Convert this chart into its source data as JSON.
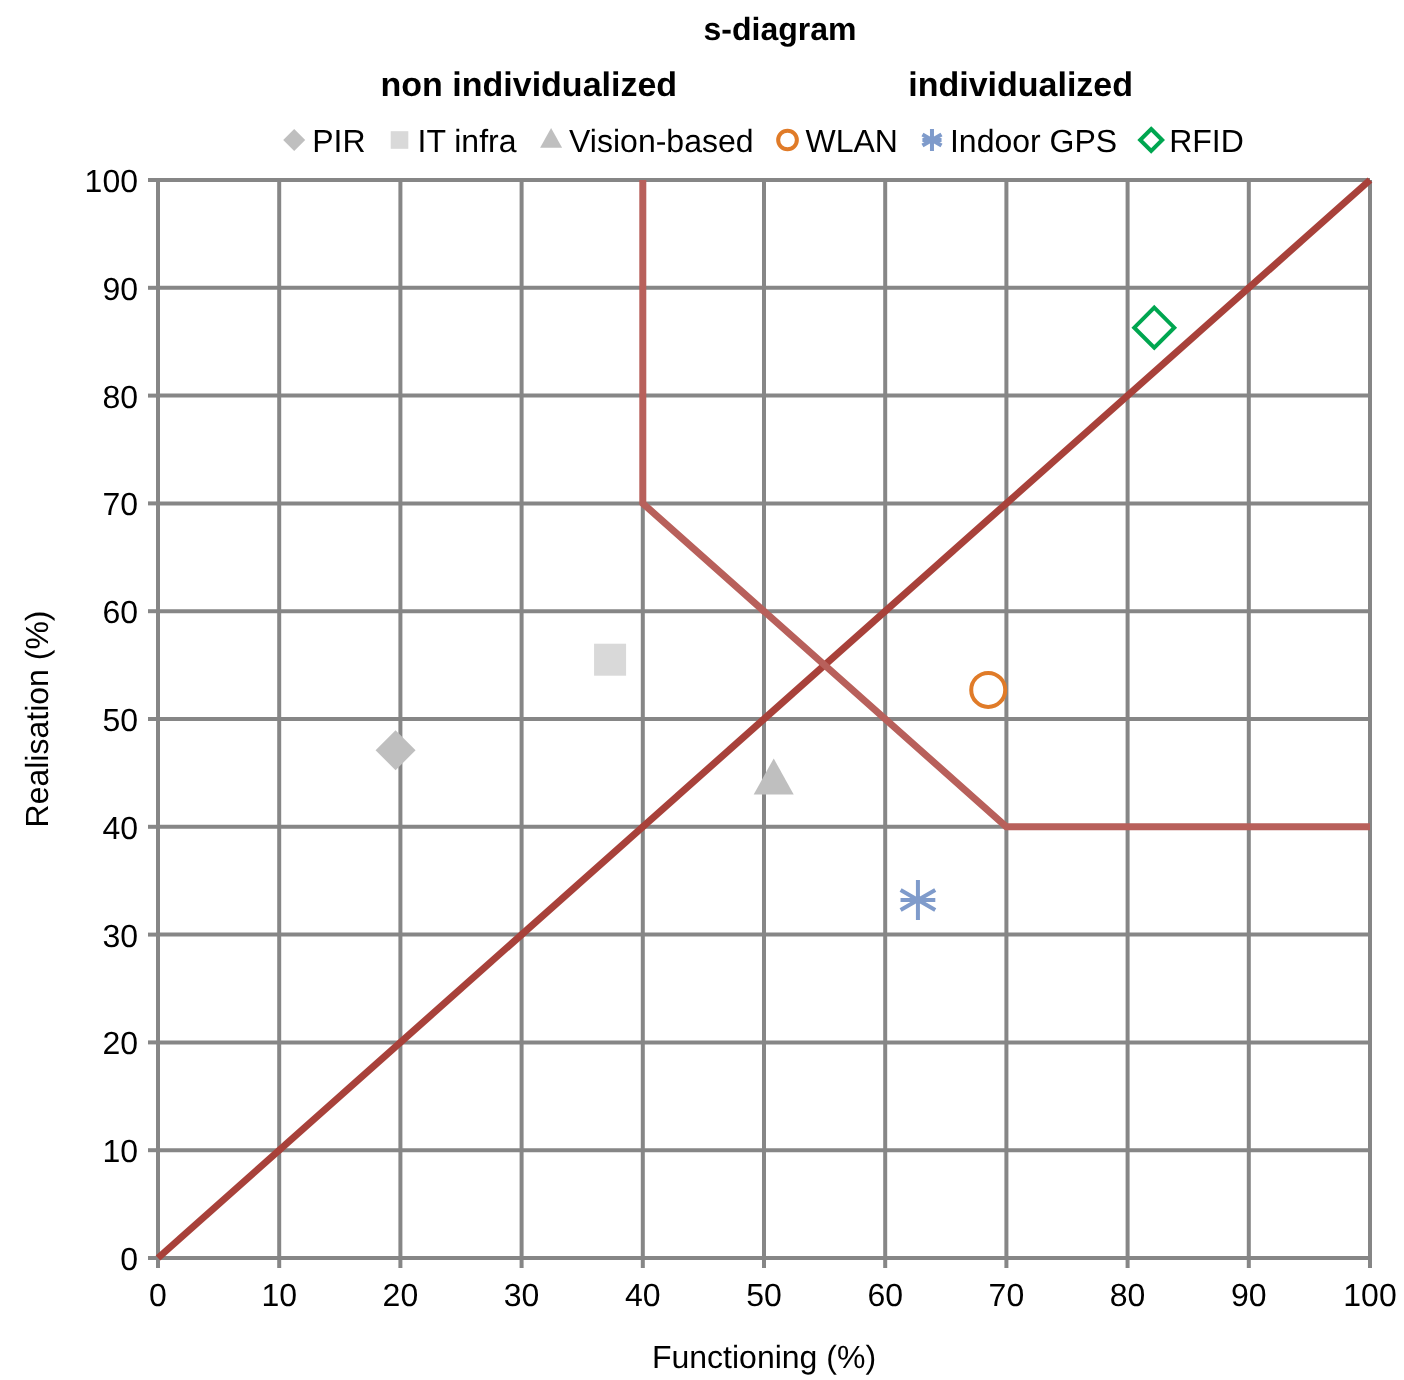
{
  "chart_data": {
    "type": "scatter",
    "title": "s-diagram",
    "annotations": [
      "non individualized",
      "individualized"
    ],
    "xlabel": "Functioning (%)",
    "ylabel": "Realisation (%)",
    "xlim": [
      0,
      100
    ],
    "xticks": [
      0,
      10,
      20,
      30,
      40,
      50,
      60,
      70,
      80,
      90,
      100
    ],
    "ylim": [
      0,
      100
    ],
    "yticks": [
      0,
      10,
      20,
      30,
      40,
      50,
      60,
      70,
      80,
      90,
      100
    ],
    "grid": true,
    "legend": "top",
    "series": [
      {
        "name": "PIR",
        "color": "#bfbfbf",
        "marker": "diamond",
        "x": [
          19.6
        ],
        "values": [
          47.1
        ]
      },
      {
        "name": "IT infra",
        "color": "#d9d9d9",
        "marker": "square",
        "x": [
          37.3
        ],
        "values": [
          55.5
        ]
      },
      {
        "name": "Vision-based",
        "color": "#bfbfbf",
        "marker": "triangle",
        "x": [
          50.8
        ],
        "values": [
          44.3
        ]
      },
      {
        "name": "WLAN",
        "color": "#e07b28",
        "marker": "circle",
        "x": [
          68.5
        ],
        "values": [
          52.7
        ]
      },
      {
        "name": "Indoor GPS",
        "color": "#7f9bcb",
        "marker": "cross",
        "x": [
          62.7
        ],
        "values": [
          33.2
        ]
      },
      {
        "name": "RFID",
        "color": "#00a650",
        "marker": "diamond",
        "x": [
          82.2
        ],
        "values": [
          86.3
        ]
      },
      {
        "type": "line",
        "color": "#a8413a",
        "x": [
          0,
          100
        ],
        "values": [
          0,
          100
        ]
      },
      {
        "type": "line",
        "color": "#b8605b",
        "x": [
          40,
          40,
          70,
          100
        ],
        "values": [
          100,
          70,
          40,
          40
        ]
      }
    ]
  }
}
